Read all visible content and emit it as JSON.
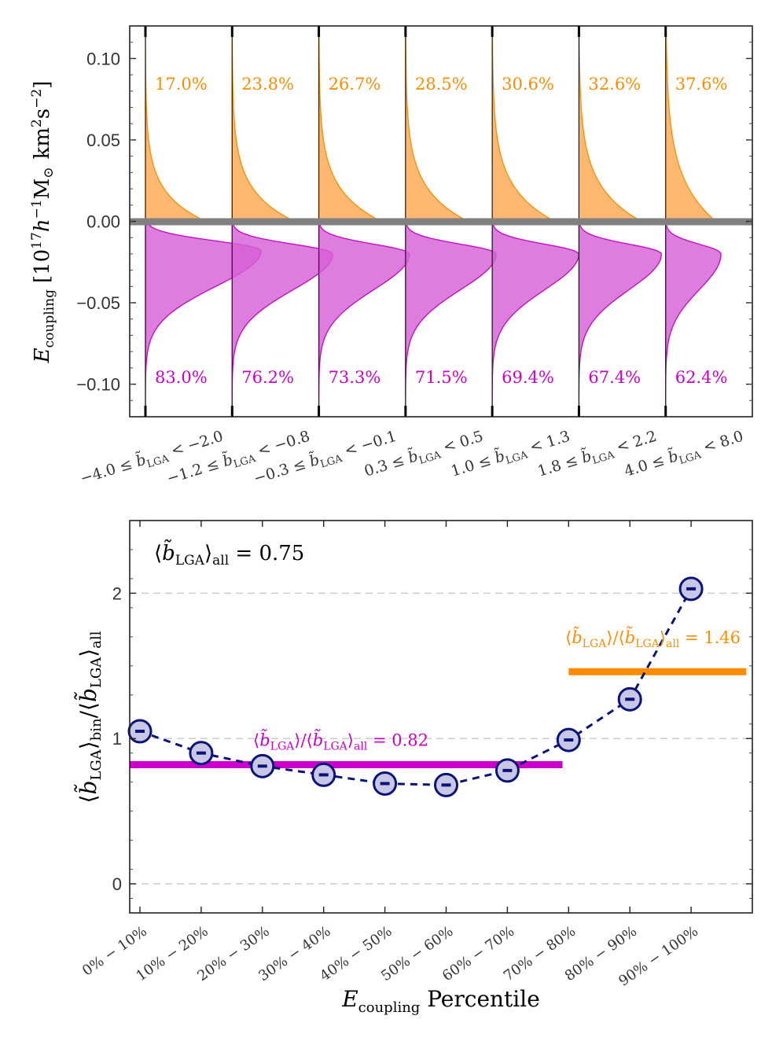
{
  "chart_data": [
    {
      "type": "violin",
      "ylabel": "E_coupling [10^17 h^-1 M_sun km^2 s^-2]",
      "ylabel_parts": {
        "sym": "E",
        "sub": "coupling",
        "unit": "[10",
        "exp1": "17",
        "h": "h",
        "exp2": "−1",
        "msun": "M",
        "sun": "⊙",
        "km": "km",
        "exp3": "2",
        "s": "s",
        "exp4": "−2",
        "close": "]"
      },
      "ylim": [
        -0.12,
        0.12
      ],
      "yticks": [
        "0.10",
        "0.05",
        "0.00",
        "−0.05",
        "−0.10"
      ],
      "ytick_values": [
        0.1,
        0.05,
        0.0,
        -0.05,
        -0.1
      ],
      "zero_line_color": "#808080",
      "positive_color": "#FF8C00",
      "negative_color": "#CC00CC",
      "bins": [
        {
          "label": "−4.0 ≤ b̃_LGA < −2.0",
          "lo": "−4.0",
          "hi": "−2.0",
          "pos_pct": "17.0%",
          "neg_pct": "83.0%",
          "pos_spread": 0.25,
          "neg_peak_width": 1.15,
          "neg_peak": -0.018,
          "pos_peak_width": 0.6
        },
        {
          "label": "−1.2 ≤ b̃_LGA < −0.8",
          "lo": "−1.2",
          "hi": "−0.8",
          "pos_pct": "23.8%",
          "neg_pct": "76.2%",
          "pos_spread": 0.32,
          "neg_peak_width": 1.0,
          "neg_peak": -0.02,
          "pos_peak_width": 0.62
        },
        {
          "label": "−0.3 ≤ b̃_LGA < −0.1",
          "lo": "−0.3",
          "hi": "−0.1",
          "pos_pct": "26.7%",
          "neg_pct": "73.3%",
          "pos_spread": 0.36,
          "neg_peak_width": 0.9,
          "neg_peak": -0.02,
          "pos_peak_width": 0.62
        },
        {
          "label": "0.3 ≤ b̃_LGA < 0.5",
          "lo": "0.3",
          "hi": "0.5",
          "pos_pct": "28.5%",
          "neg_pct": "71.5%",
          "pos_spread": 0.38,
          "neg_peak_width": 0.9,
          "neg_peak": -0.02,
          "pos_peak_width": 0.62
        },
        {
          "label": "1.0 ≤ b̃_LGA < 1.3",
          "lo": "1.0",
          "hi": "1.3",
          "pos_pct": "30.6%",
          "neg_pct": "69.4%",
          "pos_spread": 0.42,
          "neg_peak_width": 0.86,
          "neg_peak": -0.02,
          "pos_peak_width": 0.62
        },
        {
          "label": "1.8 ≤ b̃_LGA < 2.2",
          "lo": "1.8",
          "hi": "2.2",
          "pos_pct": "32.6%",
          "neg_pct": "67.4%",
          "pos_spread": 0.46,
          "neg_peak_width": 0.82,
          "neg_peak": -0.02,
          "pos_peak_width": 0.62
        },
        {
          "label": "4.0 ≤ b̃_LGA < 8.0",
          "lo": "4.0",
          "hi": "8.0",
          "pos_pct": "37.6%",
          "neg_pct": "62.4%",
          "pos_spread": 0.7,
          "neg_peak_width": 0.55,
          "neg_peak": -0.02,
          "pos_peak_width": 0.5
        }
      ]
    },
    {
      "type": "line",
      "title_text": "⟨b̃_LGA⟩_all = 0.75",
      "title_parts": {
        "open": "⟨",
        "b": "b̃",
        "sub": "LGA",
        "close": "⟩",
        "sub2": "all",
        "eq": " = 0.75"
      },
      "xlabel": "E_coupling Percentile",
      "xlabel_parts": {
        "sym": "E",
        "sub": "coupling",
        "rest": " Percentile"
      },
      "ylabel": "⟨b̃_LGA⟩_bin/⟨b̃_LGA⟩_all",
      "ylabel_parts": {
        "open": "⟨",
        "b": "b̃",
        "sub": "LGA",
        "close": "⟩",
        "sub2": "bin",
        "slash": "/",
        "sub3": "all"
      },
      "ylim": [
        -0.2,
        2.5
      ],
      "yticks": [
        "0",
        "1",
        "2"
      ],
      "ytick_values": [
        0,
        1,
        2
      ],
      "categories": [
        "0% − 10%",
        "10% − 20%",
        "20% − 30%",
        "30% − 40%",
        "40% − 50%",
        "50% − 60%",
        "60% − 70%",
        "70% − 80%",
        "80% − 90%",
        "90% − 100%"
      ],
      "values": [
        1.05,
        0.9,
        0.81,
        0.75,
        0.69,
        0.68,
        0.78,
        0.99,
        1.27,
        2.03
      ],
      "errors": [
        0.02,
        0.02,
        0.02,
        0.02,
        0.02,
        0.02,
        0.02,
        0.02,
        0.02,
        0.02
      ],
      "marker_color": "#C8C8E6",
      "line_color": "#0A1478",
      "hlines": [
        {
          "y": 0.82,
          "x_from_cat": -0.2,
          "x_to_cat": 6.9,
          "color": "#CC00CC",
          "label": "⟨b̃_LGA⟩/⟨b̃_LGA⟩_all = 0.82",
          "label_eq": " = 0.82"
        },
        {
          "y": 1.46,
          "x_from_cat": 7.0,
          "x_to_cat": 9.9,
          "color": "#FF8C00",
          "label": "⟨b̃_LGA⟩/⟨b̃_LGA⟩_all = 1.46",
          "label_eq": " = 1.46"
        }
      ]
    }
  ]
}
